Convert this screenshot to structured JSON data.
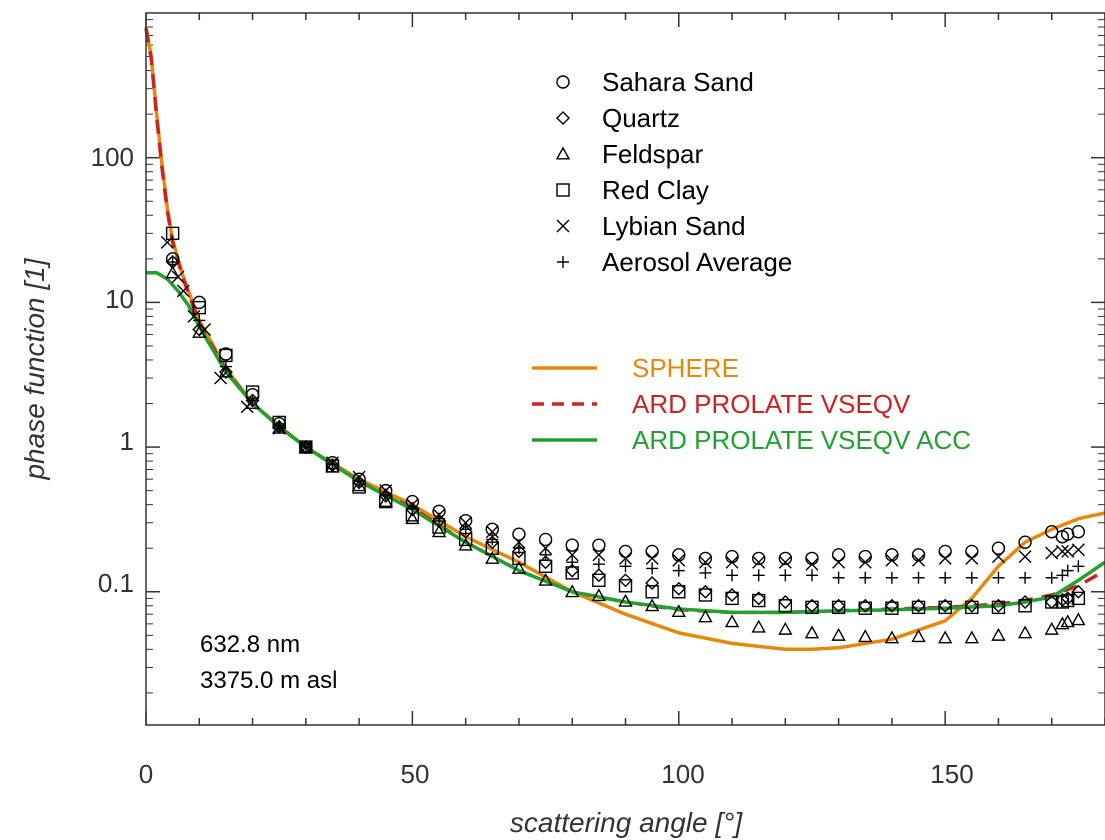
{
  "chart_data": {
    "type": "scatter",
    "xlabel": "scattering angle [°]",
    "ylabel": "phase function [1]",
    "xlim": [
      0,
      180
    ],
    "ylim": [
      0.012,
      1000
    ],
    "yscale": "log",
    "xticks": [
      "0",
      "50",
      "100",
      "150"
    ],
    "yticks": [
      "0.1",
      "1",
      "10",
      "100"
    ],
    "annotations": [
      "632.8 nm",
      "3375.0 m asl"
    ],
    "legend_markers": [
      "Sahara Sand",
      "Quartz",
      "Feldspar",
      "Red Clay",
      "Lybian Sand",
      "Aerosol Average"
    ],
    "legend_lines": [
      "SPHERE",
      "ARD PROLATE VSEQV",
      "ARD PROLATE VSEQV ACC"
    ],
    "colors": {
      "SPHERE": "#E8880A",
      "ARD PROLATE VSEQV": "#CC2222",
      "ARD PROLATE VSEQV ACC": "#22A030"
    },
    "markers": {
      "Sahara Sand": "circle",
      "Quartz": "diamond",
      "Feldspar": "triangle",
      "Red Clay": "square",
      "Lybian Sand": "x",
      "Aerosol Average": "plus"
    },
    "scatter_series": [
      {
        "name": "Sahara Sand",
        "x": [
          5,
          10,
          15,
          20,
          25,
          30,
          35,
          40,
          45,
          50,
          55,
          60,
          65,
          70,
          75,
          80,
          85,
          90,
          95,
          100,
          105,
          110,
          115,
          120,
          125,
          130,
          135,
          140,
          145,
          150,
          155,
          160,
          165,
          170,
          172,
          173,
          175
        ],
        "y": [
          20,
          10,
          4.4,
          2.3,
          1.45,
          1.0,
          0.78,
          0.6,
          0.5,
          0.42,
          0.36,
          0.31,
          0.27,
          0.25,
          0.23,
          0.21,
          0.21,
          0.19,
          0.19,
          0.18,
          0.17,
          0.175,
          0.17,
          0.17,
          0.17,
          0.18,
          0.175,
          0.18,
          0.18,
          0.19,
          0.19,
          0.2,
          0.22,
          0.26,
          0.24,
          0.25,
          0.26
        ]
      },
      {
        "name": "Quartz",
        "x": [
          5,
          10,
          15,
          20,
          25,
          30,
          35,
          40,
          45,
          50,
          55,
          60,
          65,
          70,
          75,
          80,
          85,
          90,
          95,
          100,
          105,
          110,
          115,
          120,
          125,
          130,
          135,
          140,
          145,
          150,
          155,
          160,
          165,
          170,
          172,
          173,
          175
        ],
        "y": [
          19,
          6.5,
          3.3,
          2.1,
          1.38,
          1.0,
          0.75,
          0.57,
          0.46,
          0.37,
          0.31,
          0.26,
          0.22,
          0.19,
          0.16,
          0.14,
          0.13,
          0.12,
          0.115,
          0.105,
          0.1,
          0.095,
          0.09,
          0.085,
          0.08,
          0.08,
          0.08,
          0.08,
          0.08,
          0.08,
          0.08,
          0.08,
          0.085,
          0.085,
          0.088,
          0.09,
          0.1
        ]
      },
      {
        "name": "Feldspar",
        "x": [
          5,
          10,
          15,
          20,
          25,
          30,
          35,
          40,
          45,
          50,
          55,
          60,
          65,
          70,
          75,
          80,
          85,
          90,
          95,
          100,
          105,
          110,
          115,
          120,
          125,
          130,
          135,
          140,
          145,
          150,
          155,
          160,
          165,
          170,
          172,
          173,
          175
        ],
        "y": [
          16,
          6.2,
          3.3,
          2.0,
          1.35,
          1.0,
          0.73,
          0.54,
          0.42,
          0.32,
          0.26,
          0.21,
          0.17,
          0.145,
          0.12,
          0.1,
          0.094,
          0.086,
          0.08,
          0.073,
          0.067,
          0.062,
          0.057,
          0.055,
          0.052,
          0.05,
          0.049,
          0.048,
          0.049,
          0.048,
          0.048,
          0.05,
          0.052,
          0.055,
          0.06,
          0.062,
          0.064
        ]
      },
      {
        "name": "Red Clay",
        "x": [
          5,
          10,
          15,
          20,
          25,
          30,
          35,
          40,
          45,
          50,
          55,
          60,
          65,
          70,
          75,
          80,
          85,
          90,
          95,
          100,
          105,
          110,
          115,
          120,
          125,
          130,
          135,
          140,
          145,
          150,
          155,
          160,
          165,
          170,
          172,
          173,
          175
        ],
        "y": [
          30,
          9.2,
          4.3,
          2.4,
          1.48,
          1.0,
          0.74,
          0.53,
          0.42,
          0.34,
          0.28,
          0.23,
          0.2,
          0.17,
          0.15,
          0.135,
          0.12,
          0.11,
          0.1,
          0.1,
          0.095,
          0.09,
          0.087,
          0.08,
          0.078,
          0.078,
          0.077,
          0.077,
          0.078,
          0.078,
          0.078,
          0.078,
          0.08,
          0.085,
          0.085,
          0.087,
          0.09
        ]
      },
      {
        "name": "Lybian Sand",
        "x": [
          4,
          6,
          7,
          9,
          11,
          14,
          19,
          25,
          30,
          35,
          40,
          45,
          50,
          55,
          60,
          65,
          70,
          75,
          80,
          85,
          90,
          95,
          100,
          105,
          110,
          115,
          120,
          125,
          130,
          135,
          140,
          145,
          150,
          155,
          160,
          165,
          170,
          172,
          173,
          175
        ],
        "y": [
          26,
          15,
          12,
          8,
          6.5,
          3,
          1.9,
          1.35,
          1.0,
          0.78,
          0.62,
          0.5,
          0.4,
          0.34,
          0.3,
          0.26,
          0.22,
          0.2,
          0.18,
          0.18,
          0.17,
          0.17,
          0.165,
          0.16,
          0.16,
          0.16,
          0.16,
          0.155,
          0.16,
          0.16,
          0.165,
          0.165,
          0.17,
          0.17,
          0.175,
          0.175,
          0.185,
          0.19,
          0.19,
          0.195
        ]
      },
      {
        "name": "Aerosol Average",
        "x": [
          5,
          10,
          15,
          20,
          25,
          30,
          35,
          40,
          45,
          50,
          55,
          60,
          65,
          70,
          75,
          80,
          85,
          90,
          95,
          100,
          105,
          110,
          115,
          120,
          125,
          130,
          135,
          140,
          145,
          150,
          155,
          160,
          165,
          170,
          172,
          173,
          175
        ],
        "y": [
          19,
          7.5,
          3.6,
          2.1,
          1.4,
          1.0,
          0.76,
          0.58,
          0.47,
          0.38,
          0.32,
          0.27,
          0.23,
          0.2,
          0.18,
          0.16,
          0.155,
          0.15,
          0.145,
          0.14,
          0.135,
          0.13,
          0.13,
          0.13,
          0.13,
          0.125,
          0.125,
          0.125,
          0.125,
          0.125,
          0.125,
          0.125,
          0.125,
          0.125,
          0.13,
          0.14,
          0.15
        ]
      }
    ],
    "line_series": [
      {
        "name": "SPHERE",
        "x": [
          0,
          1,
          2,
          3,
          4,
          5,
          7,
          10,
          15,
          20,
          25,
          30,
          40,
          50,
          60,
          70,
          80,
          90,
          100,
          110,
          120,
          125,
          130,
          140,
          150,
          155,
          160,
          165,
          170,
          175,
          180
        ],
        "y": [
          800,
          500,
          200,
          90,
          45,
          27,
          15,
          7.5,
          3.5,
          2.0,
          1.4,
          1.0,
          0.6,
          0.4,
          0.24,
          0.16,
          0.1,
          0.07,
          0.052,
          0.044,
          0.04,
          0.04,
          0.041,
          0.047,
          0.063,
          0.09,
          0.15,
          0.22,
          0.27,
          0.32,
          0.35
        ]
      },
      {
        "name": "ARD PROLATE VSEQV",
        "x": [
          0,
          1,
          2,
          3,
          4,
          5,
          7,
          10,
          15,
          20,
          25,
          30,
          40,
          50,
          60,
          70,
          80,
          90,
          100,
          110,
          120,
          130,
          140,
          150,
          160,
          165,
          170,
          175,
          180
        ],
        "y": [
          780,
          480,
          190,
          85,
          43,
          26,
          14.5,
          7.2,
          3.4,
          2.0,
          1.38,
          1.0,
          0.58,
          0.38,
          0.22,
          0.14,
          0.1,
          0.085,
          0.075,
          0.072,
          0.072,
          0.074,
          0.076,
          0.078,
          0.082,
          0.087,
          0.095,
          0.11,
          0.14
        ]
      },
      {
        "name": "ARD PROLATE VSEQV ACC",
        "x": [
          0,
          2,
          4,
          6,
          8,
          10,
          15,
          20,
          25,
          30,
          40,
          50,
          60,
          70,
          80,
          90,
          100,
          110,
          120,
          130,
          140,
          150,
          160,
          165,
          170,
          175,
          180
        ],
        "y": [
          16,
          16,
          14.5,
          12,
          9.5,
          6.8,
          3.3,
          2.0,
          1.38,
          1.0,
          0.58,
          0.37,
          0.22,
          0.14,
          0.1,
          0.085,
          0.076,
          0.072,
          0.072,
          0.074,
          0.075,
          0.077,
          0.08,
          0.085,
          0.092,
          0.12,
          0.16
        ]
      }
    ]
  }
}
